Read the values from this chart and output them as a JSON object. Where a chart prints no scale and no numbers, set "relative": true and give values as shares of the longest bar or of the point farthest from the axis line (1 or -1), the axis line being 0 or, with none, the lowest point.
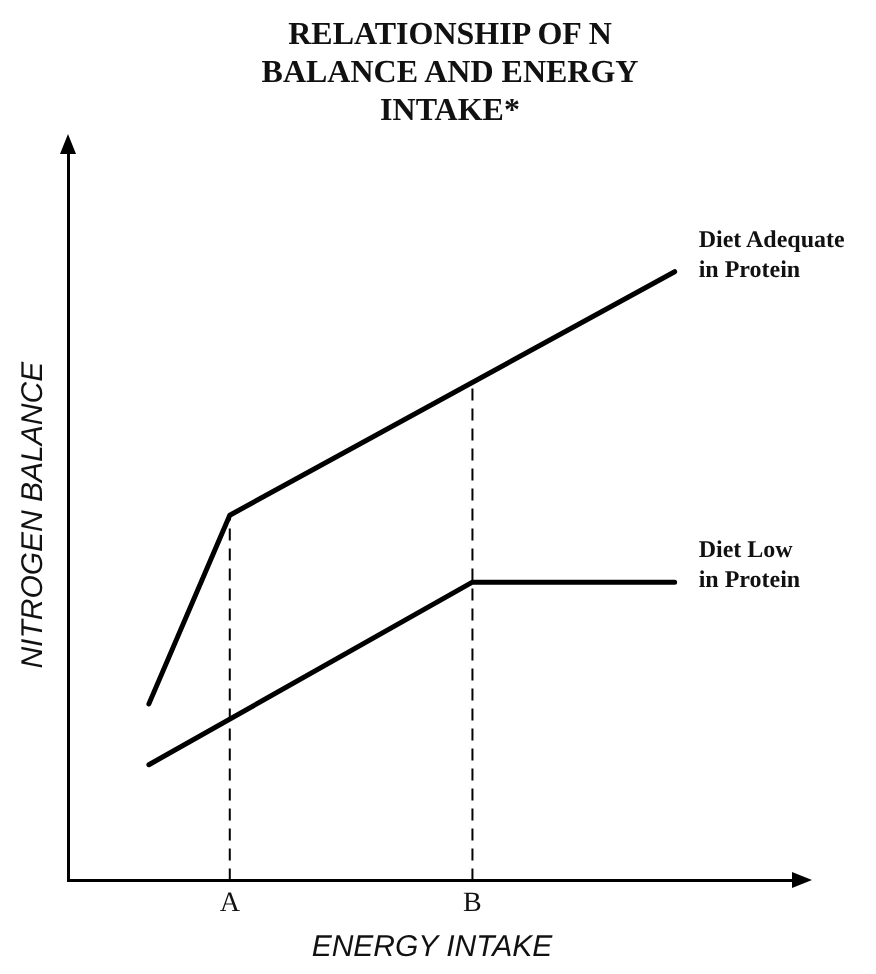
{
  "chart_data": {
    "type": "line",
    "title": "RELATIONSHIP OF N BALANCE AND ENERGY INTAKE*",
    "xlabel": "ENERGY INTAKE",
    "ylabel": "NITROGEN BALANCE",
    "relative": true,
    "categories": [
      null,
      null,
      null,
      null,
      "A",
      null,
      null,
      null,
      null,
      null,
      "B",
      null,
      null,
      null,
      null,
      null,
      null,
      null,
      null
    ],
    "series": [
      {
        "name": "Diet Adequate in Protein",
        "color": "#000000",
        "values": [
          null,
          null,
          0.29,
          null,
          0.6,
          null,
          null,
          null,
          null,
          null,
          null,
          null,
          null,
          null,
          null,
          1,
          null,
          null,
          null
        ]
      },
      {
        "name": "Diet Low in Protein",
        "color": "#000000",
        "values": [
          null,
          null,
          0.19,
          null,
          null,
          null,
          null,
          null,
          null,
          null,
          0.49,
          null,
          null,
          null,
          null,
          0.49,
          null,
          null,
          null
        ]
      }
    ],
    "ref_lines": [
      {
        "axis": "x",
        "value": "A",
        "color": "#000000",
        "line_style": "dashed"
      },
      {
        "axis": "x",
        "value": "B",
        "color": "#000000",
        "line_style": "dashed"
      }
    ],
    "grid": false,
    "legend": false,
    "marker": "none",
    "line_style": "solid"
  }
}
